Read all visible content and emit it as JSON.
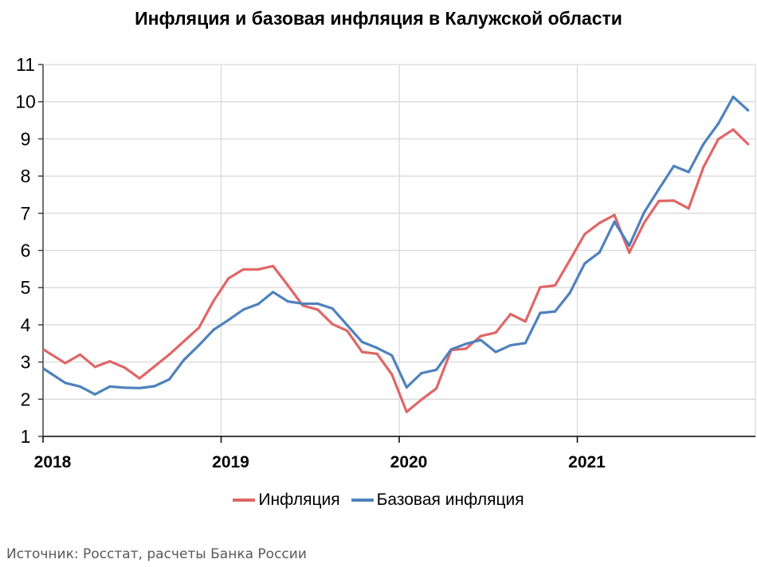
{
  "chart_data": {
    "type": "line",
    "title": "Инфляция и базовая инфляция в Калужской области",
    "xlabel": "",
    "ylabel": "",
    "ylim": [
      1,
      11
    ],
    "yticks": [
      "1",
      "2",
      "3",
      "4",
      "5",
      "6",
      "7",
      "8",
      "9",
      "10",
      "11"
    ],
    "xticks": [
      "2018",
      "2019",
      "2020",
      "2021"
    ],
    "x_start": "2018-01",
    "x_frequency": "monthly",
    "grid": true,
    "legend_position": "bottom",
    "series": [
      {
        "name": "Инфляция",
        "color": "#e06666",
        "values": [
          3.22,
          2.97,
          3.2,
          2.87,
          3.02,
          2.85,
          2.56,
          2.88,
          3.2,
          3.56,
          3.92,
          4.65,
          5.25,
          5.49,
          5.49,
          5.58,
          5.06,
          4.52,
          4.41,
          4.02,
          3.84,
          3.27,
          3.22,
          2.67,
          1.66,
          1.99,
          2.29,
          3.32,
          3.36,
          3.7,
          3.79,
          4.29,
          4.09,
          5.01,
          5.06,
          5.74,
          6.44,
          6.74,
          6.95,
          5.94,
          6.74,
          7.33,
          7.34,
          7.13,
          8.24,
          8.99,
          9.25,
          8.86
        ]
      },
      {
        "name": "Базовая инфляция",
        "color": "#4f81bd",
        "values": [
          2.7,
          2.44,
          2.34,
          2.13,
          2.34,
          2.31,
          2.3,
          2.35,
          2.53,
          3.06,
          3.45,
          3.87,
          4.13,
          4.41,
          4.56,
          4.88,
          4.63,
          4.57,
          4.57,
          4.44,
          3.99,
          3.54,
          3.38,
          3.18,
          2.32,
          2.7,
          2.79,
          3.34,
          3.49,
          3.59,
          3.27,
          3.45,
          3.51,
          4.32,
          4.36,
          4.86,
          5.65,
          5.95,
          6.77,
          6.13,
          7.02,
          7.65,
          8.27,
          8.11,
          8.86,
          9.41,
          10.13,
          9.77
        ]
      }
    ]
  },
  "source": "Источник: Росстат, расчеты Банка России"
}
